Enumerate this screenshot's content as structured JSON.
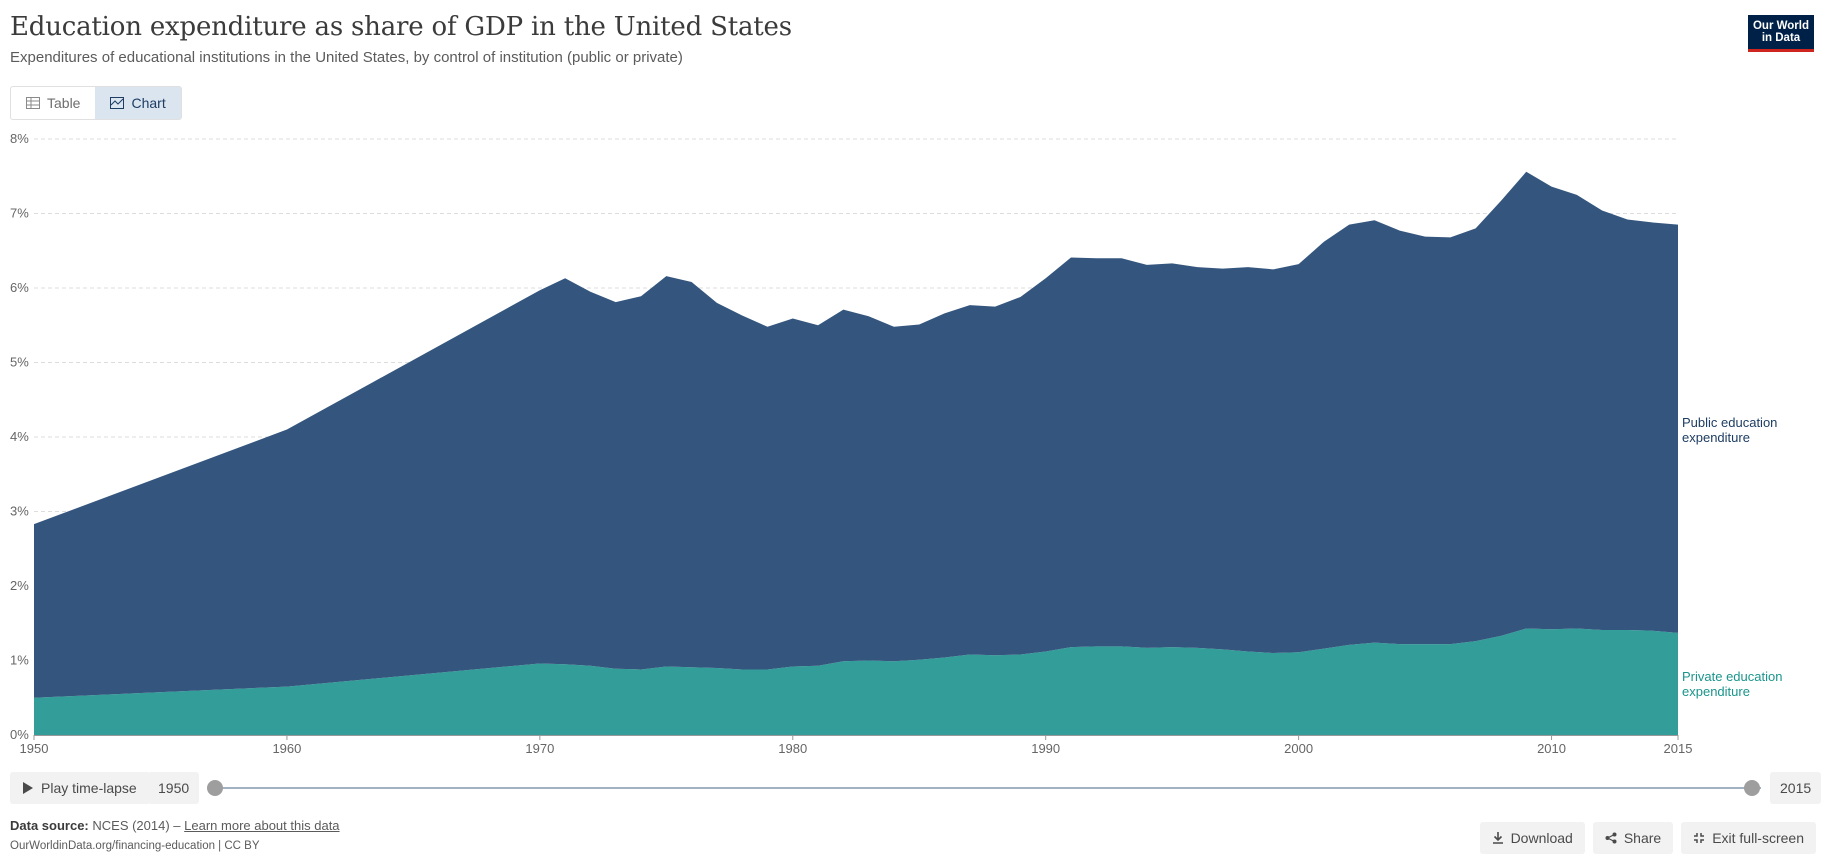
{
  "header": {
    "title": "Education expenditure as share of GDP in the United States",
    "subtitle": "Expenditures of educational institutions in the United States, by control of institution (public or private)",
    "logo_line1": "Our World",
    "logo_line2": "in Data"
  },
  "tabs": {
    "table_label": "Table",
    "chart_label": "Chart",
    "active": "chart"
  },
  "chart_data": {
    "type": "area",
    "stacked": true,
    "title": "Education expenditure as share of GDP in the United States",
    "xlabel": "",
    "ylabel": "",
    "xlim": [
      1950,
      2015
    ],
    "ylim": [
      0,
      8
    ],
    "x_ticks": [
      "1950",
      "1960",
      "1970",
      "1980",
      "1990",
      "2000",
      "2010",
      "2015"
    ],
    "y_ticks": [
      "0%",
      "1%",
      "2%",
      "3%",
      "4%",
      "5%",
      "6%",
      "7%",
      "8%"
    ],
    "grid": true,
    "series": [
      {
        "name": "Private education expenditure",
        "color": "#339e99",
        "label_color": "#1a958c",
        "points": [
          [
            1950,
            0.5
          ],
          [
            1960,
            0.65
          ],
          [
            1970,
            0.96
          ],
          [
            1971,
            0.95
          ],
          [
            1972,
            0.93
          ],
          [
            1973,
            0.89
          ],
          [
            1974,
            0.88
          ],
          [
            1975,
            0.92
          ],
          [
            1976,
            0.91
          ],
          [
            1977,
            0.9
          ],
          [
            1978,
            0.88
          ],
          [
            1979,
            0.88
          ],
          [
            1980,
            0.92
          ],
          [
            1981,
            0.93
          ],
          [
            1982,
            0.99
          ],
          [
            1983,
            1.0
          ],
          [
            1984,
            0.99
          ],
          [
            1985,
            1.01
          ],
          [
            1986,
            1.04
          ],
          [
            1987,
            1.08
          ],
          [
            1988,
            1.07
          ],
          [
            1989,
            1.08
          ],
          [
            1990,
            1.12
          ],
          [
            1991,
            1.18
          ],
          [
            1992,
            1.19
          ],
          [
            1993,
            1.19
          ],
          [
            1994,
            1.17
          ],
          [
            1995,
            1.18
          ],
          [
            1996,
            1.17
          ],
          [
            1997,
            1.15
          ],
          [
            1998,
            1.12
          ],
          [
            1999,
            1.1
          ],
          [
            2000,
            1.11
          ],
          [
            2001,
            1.16
          ],
          [
            2002,
            1.21
          ],
          [
            2003,
            1.24
          ],
          [
            2004,
            1.22
          ],
          [
            2005,
            1.22
          ],
          [
            2006,
            1.22
          ],
          [
            2007,
            1.26
          ],
          [
            2008,
            1.33
          ],
          [
            2009,
            1.43
          ],
          [
            2010,
            1.42
          ],
          [
            2011,
            1.43
          ],
          [
            2012,
            1.41
          ],
          [
            2013,
            1.41
          ],
          [
            2014,
            1.4
          ],
          [
            2015,
            1.37
          ]
        ]
      },
      {
        "name": "Public education expenditure",
        "color": "#34567e",
        "label_color": "#1d3d63",
        "points": [
          [
            1950,
            2.33
          ],
          [
            1960,
            3.45
          ],
          [
            1970,
            5.01
          ],
          [
            1971,
            5.18
          ],
          [
            1972,
            5.02
          ],
          [
            1973,
            4.92
          ],
          [
            1974,
            5.01
          ],
          [
            1975,
            5.24
          ],
          [
            1976,
            5.17
          ],
          [
            1977,
            4.9
          ],
          [
            1978,
            4.75
          ],
          [
            1979,
            4.6
          ],
          [
            1980,
            4.67
          ],
          [
            1981,
            4.57
          ],
          [
            1982,
            4.72
          ],
          [
            1983,
            4.62
          ],
          [
            1984,
            4.49
          ],
          [
            1985,
            4.5
          ],
          [
            1986,
            4.62
          ],
          [
            1987,
            4.69
          ],
          [
            1988,
            4.68
          ],
          [
            1989,
            4.8
          ],
          [
            1990,
            5.01
          ],
          [
            1991,
            5.23
          ],
          [
            1992,
            5.21
          ],
          [
            1993,
            5.21
          ],
          [
            1994,
            5.14
          ],
          [
            1995,
            5.15
          ],
          [
            1996,
            5.11
          ],
          [
            1997,
            5.11
          ],
          [
            1998,
            5.16
          ],
          [
            1999,
            5.15
          ],
          [
            2000,
            5.21
          ],
          [
            2001,
            5.46
          ],
          [
            2002,
            5.64
          ],
          [
            2003,
            5.67
          ],
          [
            2004,
            5.55
          ],
          [
            2005,
            5.47
          ],
          [
            2006,
            5.46
          ],
          [
            2007,
            5.54
          ],
          [
            2008,
            5.84
          ],
          [
            2009,
            6.13
          ],
          [
            2010,
            5.94
          ],
          [
            2011,
            5.82
          ],
          [
            2012,
            5.63
          ],
          [
            2013,
            5.51
          ],
          [
            2014,
            5.48
          ],
          [
            2015,
            5.48
          ]
        ]
      }
    ],
    "legend": {
      "public_line1": "Public education",
      "public_line2": "expenditure",
      "private_line1": "Private education",
      "private_line2": "expenditure"
    }
  },
  "timeline": {
    "play_label": "Play time-lapse",
    "start_year": "1950",
    "end_year": "2015"
  },
  "footer": {
    "source_label": "Data source:",
    "source_text": "NCES (2014) –",
    "learn_more": "Learn more about this data",
    "url_text": "OurWorldinData.org/financing-education | CC BY"
  },
  "actions": {
    "download": "Download",
    "share": "Share",
    "fullscreen": "Exit full-screen"
  }
}
